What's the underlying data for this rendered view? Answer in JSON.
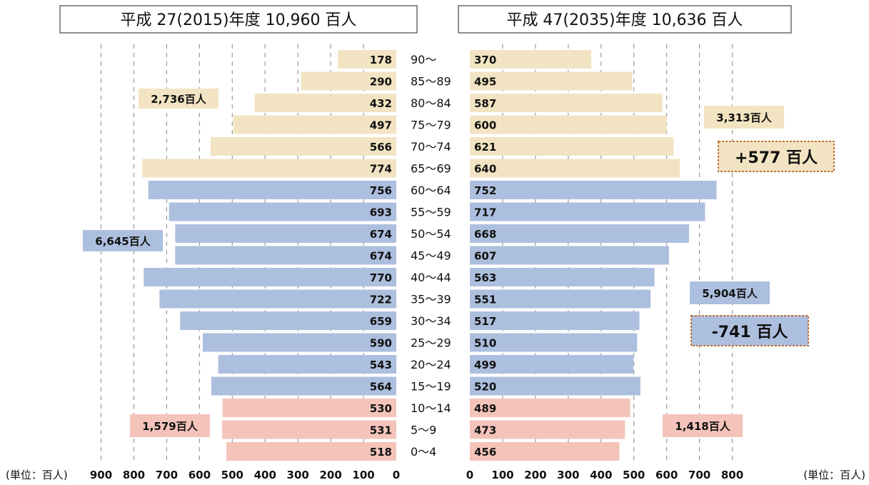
{
  "chart_data": {
    "type": "bar",
    "orientation": "horizontal",
    "subtype": "population-pyramid",
    "unit": "百人",
    "unit_label": "(単位：百人)",
    "categories": [
      "90〜",
      "85〜89",
      "80〜84",
      "75〜79",
      "70〜74",
      "65〜69",
      "60〜64",
      "55〜59",
      "50〜54",
      "45〜49",
      "40〜44",
      "35〜39",
      "30〜34",
      "25〜29",
      "20〜24",
      "15〜19",
      "10〜14",
      "5〜9",
      "0〜4"
    ],
    "series": [
      {
        "name": "平成 27(2015)年度 10,960 百人",
        "values": [
          178,
          290,
          432,
          497,
          566,
          774,
          756,
          693,
          674,
          674,
          770,
          722,
          659,
          590,
          543,
          564,
          530,
          531,
          518
        ]
      },
      {
        "name": "平成 47(2035)年度 10,636 百人",
        "values": [
          370,
          495,
          587,
          600,
          621,
          640,
          752,
          717,
          668,
          607,
          563,
          551,
          517,
          510,
          499,
          520,
          489,
          473,
          456
        ]
      }
    ],
    "xlim": [
      0,
      900
    ],
    "xticks_left": [
      900,
      800,
      700,
      600,
      500,
      400,
      300,
      200,
      100,
      0
    ],
    "xticks_right": [
      0,
      100,
      200,
      300,
      400,
      500,
      600,
      700,
      800
    ],
    "grid": true,
    "group_colors": {
      "elderly": "#f2e4c2",
      "working": "#adbfde",
      "young": "#f4c4bb"
    },
    "groups": {
      "elderly": [
        "90〜",
        "85〜89",
        "80〜84",
        "75〜79",
        "70〜74",
        "65〜69"
      ],
      "working": [
        "60〜64",
        "55〜59",
        "50〜54",
        "45〜49",
        "40〜44",
        "35〜39",
        "30〜34",
        "25〜29",
        "20〜24",
        "15〜19"
      ],
      "young": [
        "10〜14",
        "5〜9",
        "0〜4"
      ]
    },
    "annotations": {
      "left": {
        "elderly_total": "2,736百人",
        "working_total": "6,645百人",
        "young_total": "1,579百人"
      },
      "right": {
        "elderly_total": "3,313百人",
        "working_total": "5,904百人",
        "young_total": "1,418百人",
        "elderly_change": "+577 百人",
        "working_change": "-741 百人"
      }
    }
  }
}
